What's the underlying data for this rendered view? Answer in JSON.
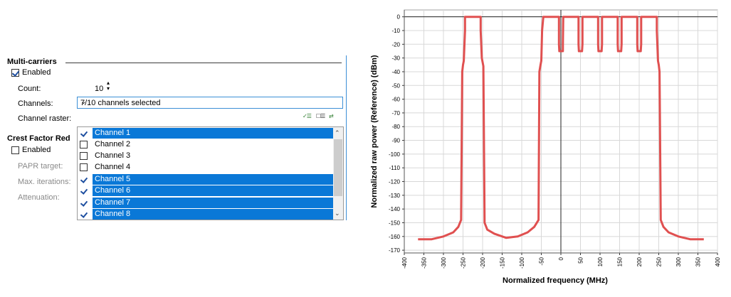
{
  "multi": {
    "title": "Multi-carriers",
    "enabled_label": "Enabled",
    "count_label": "Count:",
    "count_value": "10",
    "channels_label": "Channels:",
    "channels_value": "7/10 channels selected",
    "raster_label": "Channel raster:",
    "channels": [
      {
        "label": "Channel 1",
        "checked": true,
        "selected": true
      },
      {
        "label": "Channel 2",
        "checked": false,
        "selected": false
      },
      {
        "label": "Channel 3",
        "checked": false,
        "selected": false
      },
      {
        "label": "Channel 4",
        "checked": false,
        "selected": false
      },
      {
        "label": "Channel 5",
        "checked": true,
        "selected": true
      },
      {
        "label": "Channel 6",
        "checked": true,
        "selected": true
      },
      {
        "label": "Channel 7",
        "checked": true,
        "selected": true
      },
      {
        "label": "Channel 8",
        "checked": true,
        "selected": true
      }
    ]
  },
  "crest": {
    "title": "Crest Factor Red",
    "enabled_label": "Enabled",
    "papr_label": "PAPR target:",
    "iter_label": "Max. iterations:",
    "atten_label": "Attenuation:"
  },
  "chart_data": {
    "type": "line",
    "xlabel": "Normalized frequency (MHz)",
    "ylabel": "Normalized raw power (Reference) (dBm)",
    "xlim": [
      -400,
      400
    ],
    "ylim": [
      -170,
      0
    ],
    "xticks": [
      "-400",
      "-350",
      "-300",
      "-250",
      "-200",
      "-150",
      "-100",
      "-50",
      "0",
      "50",
      "100",
      "150",
      "200",
      "250",
      "300",
      "350",
      "400"
    ],
    "yticks": [
      "0",
      "-10",
      "-20",
      "-30",
      "-40",
      "-50",
      "-60",
      "-70",
      "-80",
      "-90",
      "-100",
      "-110",
      "-120",
      "-130",
      "-140",
      "-150",
      "-160",
      "-170"
    ],
    "grid": true,
    "line_color": "#e05050",
    "x": [
      -365,
      -330,
      -300,
      -275,
      -262,
      -255,
      -252,
      -250,
      -248,
      -245,
      -245,
      -205,
      -205,
      -202,
      -200,
      -198,
      -195,
      -188,
      -170,
      -140,
      -110,
      -85,
      -68,
      -57,
      -55,
      -52,
      -50,
      -48,
      -45,
      -45,
      -5,
      -5,
      -4,
      5,
      5,
      6,
      45,
      45,
      46,
      54,
      55,
      55,
      95,
      95,
      96,
      104,
      105,
      105,
      145,
      145,
      146,
      154,
      155,
      155,
      195,
      195,
      196,
      204,
      205,
      205,
      245,
      245,
      248,
      250,
      252,
      255,
      262,
      275,
      300,
      330,
      365
    ],
    "y": [
      -162,
      -162,
      -160,
      -157,
      -153,
      -148,
      -40,
      -35,
      -32,
      -10,
      0,
      0,
      -10,
      -30,
      -33,
      -36,
      -150,
      -155,
      -158,
      -161,
      -160,
      -157,
      -153,
      -148,
      -40,
      -35,
      -32,
      -10,
      0,
      0,
      0,
      -20,
      -25,
      -25,
      -20,
      0,
      0,
      -20,
      -25,
      -25,
      -20,
      0,
      0,
      -20,
      -25,
      -25,
      -20,
      0,
      0,
      -20,
      -25,
      -25,
      -20,
      0,
      0,
      -20,
      -25,
      -25,
      -20,
      0,
      0,
      -10,
      -32,
      -35,
      -40,
      -148,
      -153,
      -157,
      -160,
      -162,
      -162
    ]
  }
}
